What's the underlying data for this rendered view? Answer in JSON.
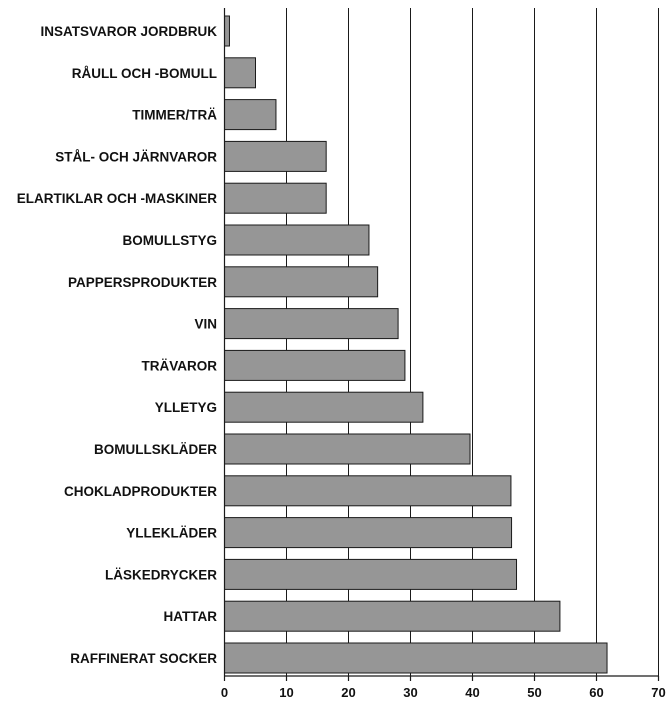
{
  "chart_data": {
    "type": "bar",
    "orientation": "horizontal",
    "categories": [
      "INSATSVAROR JORDBRUK",
      "RÅULL OCH -BOMULL",
      "TIMMER/TRÄ",
      "STÅL- OCH JÄRNVAROR",
      "ELARTIKLAR OCH -MASKINER",
      "BOMULLSTYG",
      "PAPPERSPRODUKTER",
      "VIN",
      "TRÄVAROR",
      "YLLETYG",
      "BOMULLSKLÄDER",
      "CHOKLADPRODUKTER",
      "YLLEKLÄDER",
      "LÄSKEDRYCKER",
      "HATTAR",
      "RAFFINERAT SOCKER"
    ],
    "values": [
      0.8,
      5.0,
      8.3,
      16.4,
      16.4,
      23.3,
      24.7,
      28.0,
      29.1,
      32.0,
      39.6,
      46.2,
      46.3,
      47.1,
      54.1,
      61.7
    ],
    "xlim": [
      0,
      70
    ],
    "xticks": [
      0,
      10,
      20,
      30,
      40,
      50,
      60,
      70
    ],
    "grid": true,
    "bar_color": "#969696",
    "title": "",
    "xlabel": "",
    "ylabel": ""
  }
}
